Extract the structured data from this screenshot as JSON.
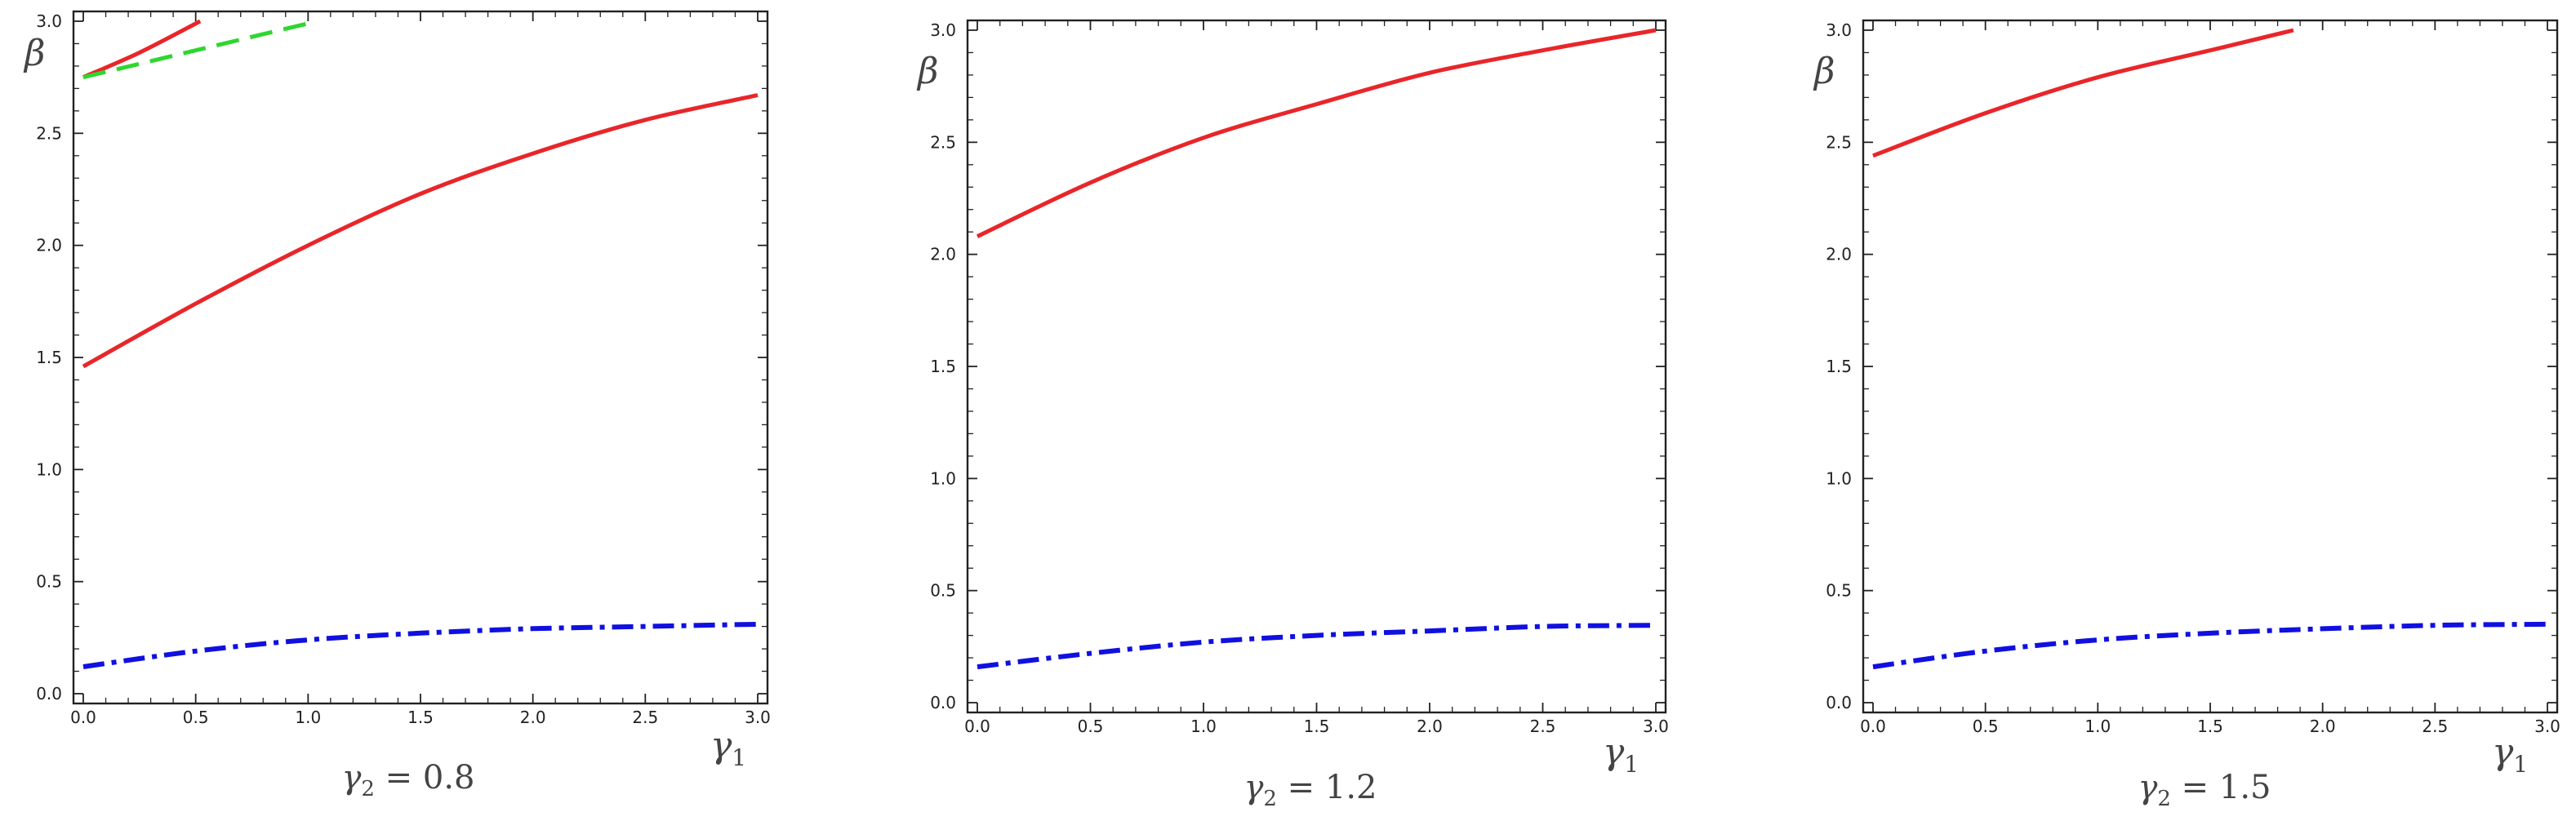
{
  "chart_data": [
    {
      "type": "line",
      "title": "γ2 = 0.8",
      "xlabel": "γ1",
      "ylabel": "β",
      "xlim": [
        0,
        3
      ],
      "ylim": [
        0,
        3
      ],
      "xticks": [
        "0.0",
        "0.5",
        "1.0",
        "1.5",
        "2.0",
        "2.5",
        "3.0"
      ],
      "yticks": [
        "0.0",
        "0.5",
        "1.0",
        "1.5",
        "2.0",
        "2.5",
        "3.0"
      ],
      "series": [
        {
          "color": "#e8262a",
          "style": "solid",
          "x": [
            0,
            0.5,
            1.0,
            1.5,
            2.0,
            2.5,
            3.0
          ],
          "y": [
            1.46,
            1.74,
            2.0,
            2.23,
            2.41,
            2.56,
            2.67
          ]
        },
        {
          "color": "#e8262a",
          "style": "solid",
          "x": [
            0,
            0.25,
            0.52
          ],
          "y": [
            2.75,
            2.86,
            3.0
          ]
        },
        {
          "color": "#2fd62f",
          "style": "dashed",
          "x": [
            0,
            0.5,
            1.0
          ],
          "y": [
            2.75,
            2.87,
            2.99
          ]
        },
        {
          "color": "#1010e0",
          "style": "dashdot",
          "x": [
            0,
            0.5,
            1.0,
            1.5,
            2.0,
            2.5,
            3.0
          ],
          "y": [
            0.12,
            0.19,
            0.24,
            0.27,
            0.29,
            0.3,
            0.31
          ]
        }
      ]
    },
    {
      "type": "line",
      "title": "γ2 = 1.2",
      "xlabel": "γ1",
      "ylabel": "β",
      "xlim": [
        0,
        3
      ],
      "ylim": [
        0,
        3
      ],
      "xticks": [
        "0.0",
        "0.5",
        "1.0",
        "1.5",
        "2.0",
        "2.5",
        "3.0"
      ],
      "yticks": [
        "0.0",
        "0.5",
        "1.0",
        "1.5",
        "2.0",
        "2.5",
        "3.0"
      ],
      "series": [
        {
          "color": "#e8262a",
          "style": "solid",
          "x": [
            0,
            0.5,
            1.0,
            1.5,
            2.0,
            2.5,
            3.0
          ],
          "y": [
            2.08,
            2.32,
            2.52,
            2.67,
            2.81,
            2.91,
            3.0
          ]
        },
        {
          "color": "#1010e0",
          "style": "dashdot",
          "x": [
            0,
            0.5,
            1.0,
            1.5,
            2.0,
            2.5,
            3.0
          ],
          "y": [
            0.16,
            0.22,
            0.27,
            0.3,
            0.32,
            0.34,
            0.345
          ]
        }
      ]
    },
    {
      "type": "line",
      "title": "γ2 = 1.5",
      "xlabel": "γ1",
      "ylabel": "β",
      "xlim": [
        0,
        3
      ],
      "ylim": [
        0,
        3
      ],
      "xticks": [
        "0.0",
        "0.5",
        "1.0",
        "1.5",
        "2.0",
        "2.5",
        "3.0"
      ],
      "yticks": [
        "0.0",
        "0.5",
        "1.0",
        "1.5",
        "2.0",
        "2.5",
        "3.0"
      ],
      "series": [
        {
          "color": "#e8262a",
          "style": "solid",
          "x": [
            0,
            0.5,
            1.0,
            1.5,
            1.87
          ],
          "y": [
            2.44,
            2.63,
            2.79,
            2.91,
            3.0
          ]
        },
        {
          "color": "#1010e0",
          "style": "dashdot",
          "x": [
            0,
            0.5,
            1.0,
            1.5,
            2.0,
            2.5,
            3.0
          ],
          "y": [
            0.16,
            0.23,
            0.28,
            0.31,
            0.33,
            0.345,
            0.35
          ]
        }
      ]
    }
  ]
}
